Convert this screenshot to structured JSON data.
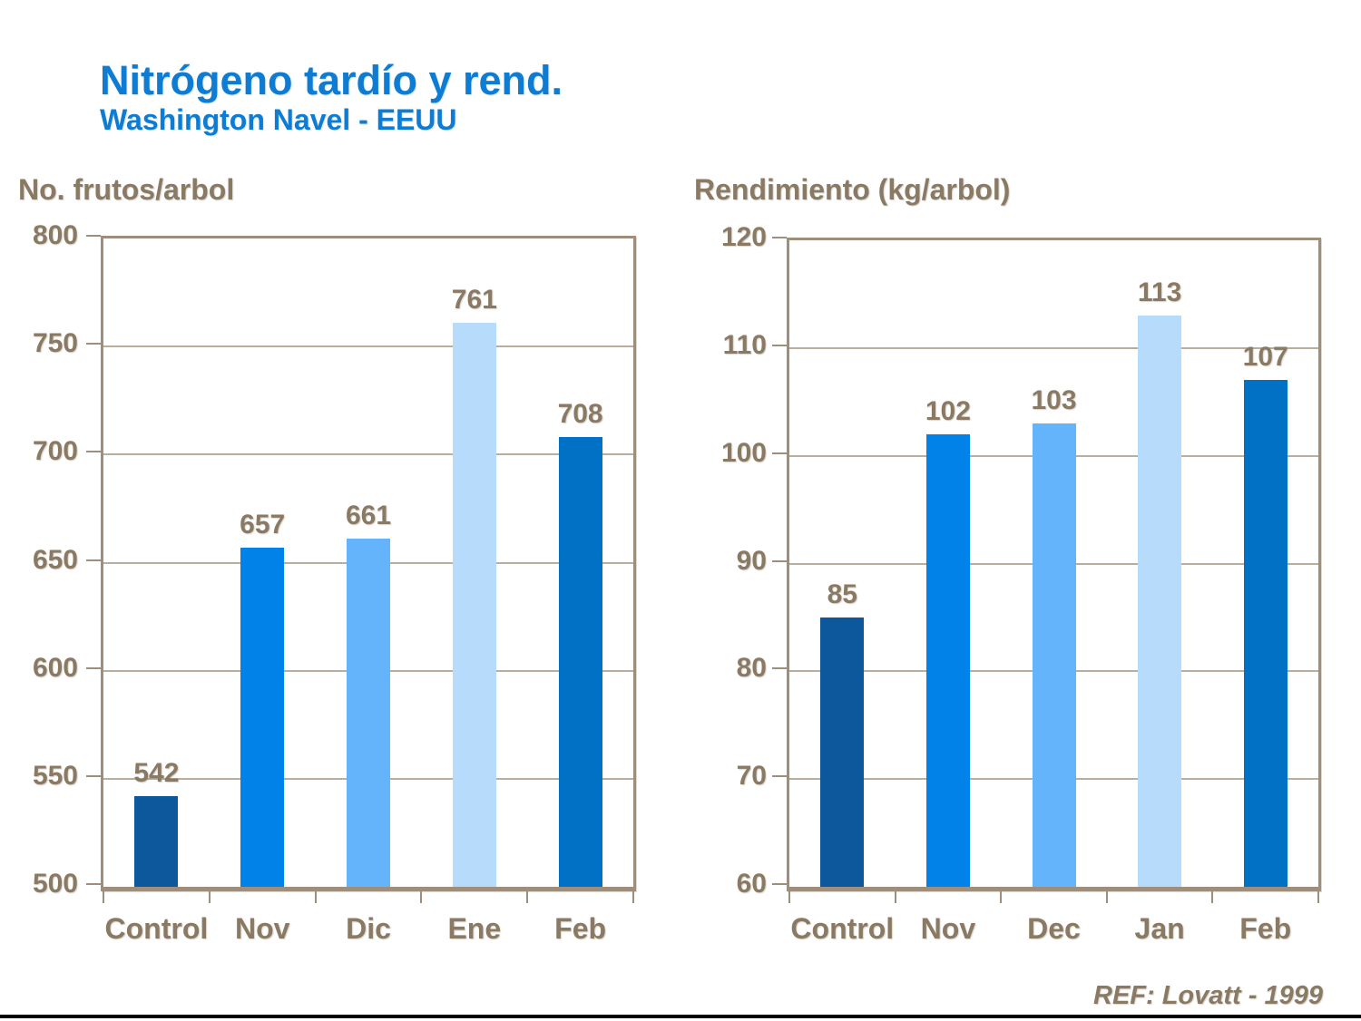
{
  "header": {
    "title": "Nitrógeno tardío y rend.",
    "subtitle": "Washington Navel - EEUU"
  },
  "footer": {
    "reference": "REF: Lovatt - 1999"
  },
  "colors": {
    "title_blue": "#0e7cd2",
    "label_brown": "#8a7a63",
    "axis_taupe": "#9e8e7b",
    "gridline": "#b9ad9d",
    "bottom_rule": "#000000",
    "bar_palette": [
      "#0d589c",
      "#0082e8",
      "#63b4fa",
      "#b7dcfb",
      "#0071c5"
    ]
  },
  "chart_data": [
    {
      "type": "bar",
      "title": "No. frutos/arbol",
      "categories": [
        "Control",
        "Nov",
        "Dic",
        "Ene",
        "Feb"
      ],
      "values": [
        542,
        657,
        661,
        761,
        708
      ],
      "ylim": [
        500,
        800
      ],
      "yticks": [
        500,
        550,
        600,
        650,
        700,
        750,
        800
      ],
      "xlabel": "",
      "ylabel": "No. frutos/arbol",
      "grid": true,
      "legend": false,
      "data_labels": true
    },
    {
      "type": "bar",
      "title": "Rendimiento (kg/arbol)",
      "categories": [
        "Control",
        "Nov",
        "Dec",
        "Jan",
        "Feb"
      ],
      "values": [
        85,
        102,
        103,
        113,
        107
      ],
      "ylim": [
        60,
        120
      ],
      "yticks": [
        60,
        70,
        80,
        90,
        100,
        110,
        120
      ],
      "xlabel": "",
      "ylabel": "Rendimiento (kg/arbol)",
      "grid": true,
      "legend": false,
      "data_labels": true
    }
  ]
}
